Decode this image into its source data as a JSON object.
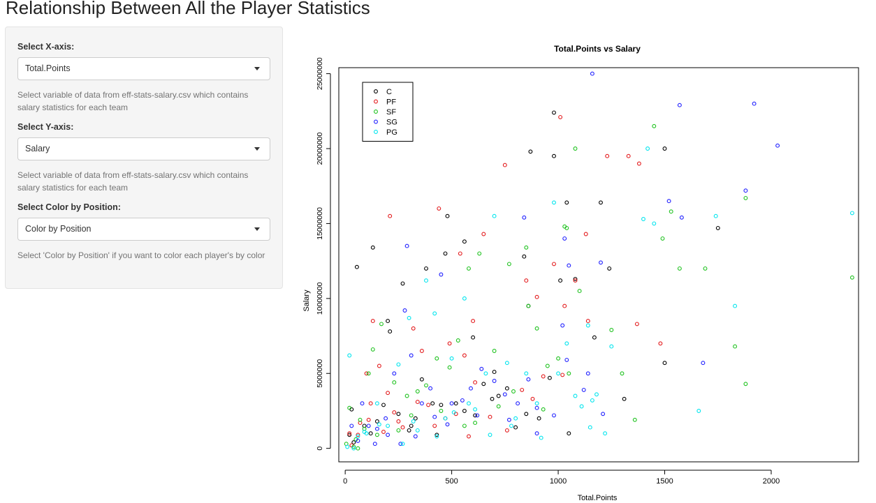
{
  "page": {
    "title": "Relationship Between All the Player Statistics"
  },
  "sidebar": {
    "x_axis": {
      "label": "Select X-axis:",
      "selected": "Total.Points",
      "help": "Select variable of data from eff-stats-salary.csv which contains salary statistics for each team"
    },
    "y_axis": {
      "label": "Select Y-axis:",
      "selected": "Salary",
      "help": "Select variable of data from eff-stats-salary.csv which contains salary statistics for each team"
    },
    "color": {
      "label": "Select Color by Position:",
      "selected": "Color by Position",
      "help": "Select 'Color by Position' if you want to color each player's by color"
    }
  },
  "chart_data": {
    "type": "scatter",
    "title": "Total.Points  vs  Salary",
    "xlabel": "Total.Points",
    "ylabel": "Salary",
    "xlim": [
      -30,
      2410
    ],
    "ylim": [
      -900000,
      25400000
    ],
    "x_ticks": [
      0,
      500,
      1000,
      1500,
      2000
    ],
    "y_ticks": [
      0,
      5000000,
      10000000,
      15000000,
      20000000,
      25000000
    ],
    "y_tick_labels": [
      "0",
      "5000000",
      "10000000",
      "15000000",
      "20000000",
      "25000000"
    ],
    "legend_position": "top-left",
    "series": [
      {
        "name": "C",
        "color": "#000000",
        "points": [
          [
            55,
            12100000
          ],
          [
            130,
            13400000
          ],
          [
            200,
            8500000
          ],
          [
            210,
            7800000
          ],
          [
            270,
            11000000
          ],
          [
            300,
            1200000
          ],
          [
            380,
            12000000
          ],
          [
            480,
            15500000
          ],
          [
            470,
            13000000
          ],
          [
            560,
            13800000
          ],
          [
            600,
            7400000
          ],
          [
            650,
            4300000
          ],
          [
            700,
            5100000
          ],
          [
            760,
            4000000
          ],
          [
            840,
            12800000
          ],
          [
            860,
            9500000
          ],
          [
            870,
            19800000
          ],
          [
            980,
            22400000
          ],
          [
            980,
            19500000
          ],
          [
            1010,
            11200000
          ],
          [
            1040,
            16400000
          ],
          [
            1050,
            1000000
          ],
          [
            1080,
            11300000
          ],
          [
            1170,
            7400000
          ],
          [
            1200,
            16400000
          ],
          [
            1240,
            12000000
          ],
          [
            1310,
            3300000
          ],
          [
            1500,
            20000000
          ],
          [
            1500,
            5700000
          ],
          [
            1750,
            14700000
          ],
          [
            20,
            900000
          ],
          [
            40,
            400000
          ],
          [
            90,
            1500000
          ],
          [
            120,
            1000000
          ],
          [
            150,
            1800000
          ],
          [
            250,
            2300000
          ],
          [
            330,
            2000000
          ],
          [
            360,
            4600000
          ],
          [
            410,
            3000000
          ],
          [
            450,
            2900000
          ],
          [
            520,
            3000000
          ],
          [
            560,
            2500000
          ],
          [
            610,
            2200000
          ],
          [
            690,
            3300000
          ],
          [
            720,
            3500000
          ],
          [
            800,
            1400000
          ],
          [
            850,
            2300000
          ],
          [
            910,
            2000000
          ],
          [
            960,
            4700000
          ],
          [
            30,
            2600000
          ],
          [
            180,
            2900000
          ],
          [
            310,
            1500000
          ],
          [
            430,
            900000
          ]
        ]
      },
      {
        "name": "PF",
        "color": "#e31a1c",
        "points": [
          [
            30,
            200000
          ],
          [
            60,
            900000
          ],
          [
            100,
            5000000
          ],
          [
            120,
            3000000
          ],
          [
            130,
            8500000
          ],
          [
            160,
            5500000
          ],
          [
            210,
            15500000
          ],
          [
            250,
            1800000
          ],
          [
            320,
            8000000
          ],
          [
            360,
            6500000
          ],
          [
            440,
            16000000
          ],
          [
            490,
            7000000
          ],
          [
            540,
            13000000
          ],
          [
            560,
            6200000
          ],
          [
            600,
            8500000
          ],
          [
            650,
            14300000
          ],
          [
            750,
            18900000
          ],
          [
            850,
            11200000
          ],
          [
            900,
            10100000
          ],
          [
            980,
            12300000
          ],
          [
            1010,
            22100000
          ],
          [
            1030,
            9500000
          ],
          [
            1080,
            11200000
          ],
          [
            1130,
            14300000
          ],
          [
            1140,
            8500000
          ],
          [
            1230,
            19500000
          ],
          [
            1330,
            19500000
          ],
          [
            1370,
            8300000
          ],
          [
            1380,
            19000000
          ],
          [
            1480,
            7000000
          ],
          [
            20,
            1000000
          ],
          [
            70,
            1700000
          ],
          [
            110,
            1900000
          ],
          [
            180,
            1100000
          ],
          [
            230,
            2400000
          ],
          [
            270,
            1400000
          ],
          [
            390,
            2900000
          ],
          [
            420,
            1500000
          ],
          [
            470,
            2000000
          ],
          [
            520,
            2300000
          ],
          [
            580,
            800000
          ],
          [
            680,
            2100000
          ],
          [
            760,
            1200000
          ],
          [
            830,
            3900000
          ],
          [
            930,
            4800000
          ],
          [
            1020,
            4900000
          ],
          [
            200,
            3700000
          ],
          [
            340,
            3100000
          ],
          [
            610,
            4400000
          ],
          [
            880,
            3300000
          ]
        ]
      },
      {
        "name": "SF",
        "color": "#1ec21e",
        "points": [
          [
            5,
            300000
          ],
          [
            20,
            2700000
          ],
          [
            50,
            600000
          ],
          [
            90,
            1300000
          ],
          [
            110,
            5000000
          ],
          [
            130,
            6600000
          ],
          [
            170,
            8300000
          ],
          [
            230,
            4400000
          ],
          [
            290,
            3500000
          ],
          [
            340,
            3800000
          ],
          [
            380,
            4200000
          ],
          [
            430,
            6000000
          ],
          [
            490,
            5400000
          ],
          [
            530,
            7200000
          ],
          [
            580,
            12000000
          ],
          [
            630,
            13000000
          ],
          [
            700,
            6500000
          ],
          [
            770,
            12300000
          ],
          [
            850,
            13400000
          ],
          [
            860,
            9500000
          ],
          [
            900,
            8000000
          ],
          [
            950,
            5500000
          ],
          [
            1030,
            14800000
          ],
          [
            1050,
            5000000
          ],
          [
            1080,
            20000000
          ],
          [
            1100,
            10500000
          ],
          [
            1250,
            7900000
          ],
          [
            1300,
            5000000
          ],
          [
            1360,
            1900000
          ],
          [
            1450,
            21500000
          ],
          [
            1490,
            14000000
          ],
          [
            1530,
            15800000
          ],
          [
            1570,
            12000000
          ],
          [
            1690,
            12000000
          ],
          [
            1830,
            6800000
          ],
          [
            1880,
            16700000
          ],
          [
            1880,
            4300000
          ],
          [
            2380,
            11400000
          ],
          [
            40,
            100000
          ],
          [
            70,
            1900000
          ],
          [
            150,
            900000
          ],
          [
            250,
            1200000
          ],
          [
            310,
            2200000
          ],
          [
            450,
            2500000
          ],
          [
            560,
            1500000
          ],
          [
            610,
            1700000
          ],
          [
            720,
            2800000
          ],
          [
            790,
            3800000
          ],
          [
            930,
            2600000
          ],
          [
            1000,
            6000000
          ],
          [
            1040,
            14700000
          ],
          [
            60,
            0
          ]
        ]
      },
      {
        "name": "SG",
        "color": "#1f1fff",
        "points": [
          [
            30,
            1500000
          ],
          [
            80,
            3000000
          ],
          [
            110,
            1500000
          ],
          [
            150,
            1300000
          ],
          [
            190,
            2000000
          ],
          [
            230,
            5000000
          ],
          [
            280,
            9200000
          ],
          [
            290,
            13500000
          ],
          [
            310,
            6200000
          ],
          [
            360,
            3000000
          ],
          [
            400,
            4000000
          ],
          [
            450,
            11600000
          ],
          [
            500,
            3000000
          ],
          [
            550,
            3200000
          ],
          [
            590,
            4000000
          ],
          [
            640,
            5300000
          ],
          [
            700,
            4500000
          ],
          [
            750,
            3600000
          ],
          [
            810,
            3000000
          ],
          [
            840,
            15400000
          ],
          [
            860,
            4600000
          ],
          [
            900,
            1000000
          ],
          [
            980,
            2200000
          ],
          [
            1020,
            8200000
          ],
          [
            1030,
            14000000
          ],
          [
            1050,
            12200000
          ],
          [
            1120,
            3900000
          ],
          [
            1140,
            5000000
          ],
          [
            1160,
            25000000
          ],
          [
            1200,
            12400000
          ],
          [
            1210,
            2300000
          ],
          [
            1520,
            16500000
          ],
          [
            1570,
            22900000
          ],
          [
            1580,
            15400000
          ],
          [
            1680,
            5700000
          ],
          [
            1880,
            17200000
          ],
          [
            1920,
            23000000
          ],
          [
            2030,
            20200000
          ],
          [
            60,
            500000
          ],
          [
            200,
            900000
          ],
          [
            330,
            800000
          ],
          [
            480,
            1600000
          ],
          [
            620,
            2200000
          ],
          [
            770,
            1900000
          ],
          [
            900,
            2700000
          ],
          [
            1040,
            5900000
          ],
          [
            140,
            300000
          ],
          [
            420,
            2100000
          ],
          [
            260,
            300000
          ]
        ]
      },
      {
        "name": "PG",
        "color": "#00e5ee",
        "points": [
          [
            20,
            6200000
          ],
          [
            60,
            800000
          ],
          [
            100,
            1000000
          ],
          [
            150,
            3000000
          ],
          [
            200,
            1500000
          ],
          [
            250,
            5600000
          ],
          [
            300,
            8700000
          ],
          [
            340,
            1200000
          ],
          [
            380,
            11200000
          ],
          [
            420,
            9000000
          ],
          [
            470,
            2000000
          ],
          [
            500,
            6000000
          ],
          [
            560,
            10000000
          ],
          [
            610,
            2600000
          ],
          [
            660,
            5000000
          ],
          [
            700,
            15500000
          ],
          [
            760,
            5700000
          ],
          [
            800,
            2000000
          ],
          [
            850,
            5000000
          ],
          [
            900,
            3000000
          ],
          [
            980,
            16400000
          ],
          [
            1000,
            5000000
          ],
          [
            1040,
            7000000
          ],
          [
            1080,
            3500000
          ],
          [
            1110,
            2800000
          ],
          [
            1140,
            8200000
          ],
          [
            1150,
            1400000
          ],
          [
            1180,
            3600000
          ],
          [
            1220,
            1000000
          ],
          [
            1250,
            6800000
          ],
          [
            1400,
            15300000
          ],
          [
            1420,
            20000000
          ],
          [
            1450,
            15000000
          ],
          [
            1660,
            2500000
          ],
          [
            1740,
            15500000
          ],
          [
            1830,
            9500000
          ],
          [
            2380,
            15700000
          ],
          [
            40,
            0
          ],
          [
            90,
            1100000
          ],
          [
            160,
            1600000
          ],
          [
            270,
            300000
          ],
          [
            320,
            1800000
          ],
          [
            430,
            800000
          ],
          [
            510,
            2400000
          ],
          [
            580,
            3000000
          ],
          [
            680,
            900000
          ],
          [
            780,
            1500000
          ],
          [
            920,
            700000
          ],
          [
            1160,
            3200000
          ],
          [
            10,
            100000
          ]
        ]
      }
    ]
  }
}
